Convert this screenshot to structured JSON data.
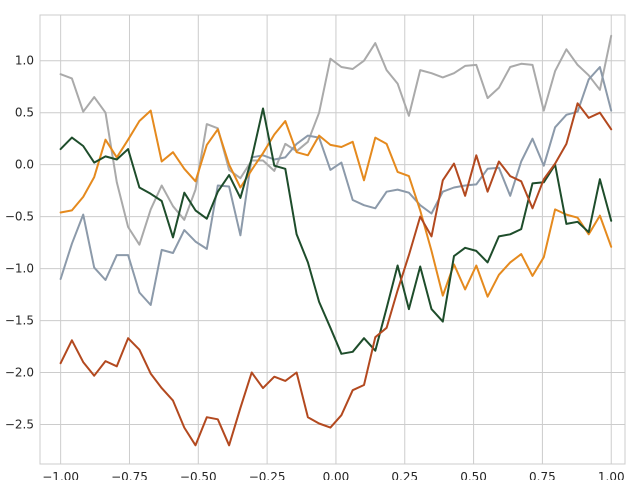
{
  "chart_data": {
    "type": "line",
    "title": "",
    "xlabel": "",
    "ylabel": "",
    "xlim": [
      -1.075,
      1.05
    ],
    "ylim": [
      -2.88,
      1.44
    ],
    "xticks": [
      -1.0,
      -0.75,
      -0.5,
      -0.25,
      0.0,
      0.25,
      0.5,
      0.75,
      1.0
    ],
    "xtick_labels": [
      "−1.00",
      "−0.75",
      "−0.50",
      "−0.25",
      "0.00",
      "0.25",
      "0.50",
      "0.75",
      "1.00"
    ],
    "yticks": [
      1.0,
      0.5,
      0.0,
      -0.5,
      -1.0,
      -1.5,
      -2.0,
      -2.5
    ],
    "ytick_labels": [
      "1.0",
      "0.5",
      "0.0",
      "−0.5",
      "−1.0",
      "−1.5",
      "−2.0",
      "−2.5"
    ],
    "grid": true,
    "legend": "none",
    "x": [
      -1.0,
      -0.959,
      -0.918,
      -0.878,
      -0.837,
      -0.796,
      -0.755,
      -0.714,
      -0.673,
      -0.633,
      -0.592,
      -0.551,
      -0.51,
      -0.469,
      -0.429,
      -0.388,
      -0.347,
      -0.306,
      -0.265,
      -0.224,
      -0.184,
      -0.143,
      -0.102,
      -0.061,
      -0.02,
      0.02,
      0.061,
      0.102,
      0.143,
      0.184,
      0.224,
      0.265,
      0.306,
      0.347,
      0.388,
      0.429,
      0.469,
      0.51,
      0.551,
      0.592,
      0.633,
      0.673,
      0.714,
      0.755,
      0.796,
      0.837,
      0.878,
      0.918,
      0.959,
      1.0
    ],
    "series": [
      {
        "color": "#aaaaaa",
        "values": [
          0.87,
          0.83,
          0.51,
          0.65,
          0.5,
          -0.17,
          -0.6,
          -0.77,
          -0.43,
          -0.2,
          -0.4,
          -0.53,
          -0.24,
          0.39,
          0.35,
          -0.05,
          -0.13,
          0.04,
          0.04,
          -0.06,
          0.2,
          0.13,
          0.22,
          0.5,
          1.02,
          0.94,
          0.92,
          1.0,
          1.17,
          0.91,
          0.78,
          0.47,
          0.91,
          0.88,
          0.84,
          0.88,
          0.95,
          0.96,
          0.64,
          0.74,
          0.94,
          0.97,
          0.96,
          0.52,
          0.9,
          1.11,
          0.96,
          0.86,
          0.72,
          1.24
        ]
      },
      {
        "color": "#8c9aaa",
        "values": [
          -1.1,
          -0.76,
          -0.48,
          -0.99,
          -1.11,
          -0.87,
          -0.87,
          -1.23,
          -1.35,
          -0.82,
          -0.85,
          -0.63,
          -0.74,
          -0.81,
          -0.2,
          -0.21,
          -0.68,
          0.07,
          0.09,
          0.05,
          0.07,
          0.2,
          0.28,
          0.26,
          -0.05,
          0.02,
          -0.34,
          -0.39,
          -0.42,
          -0.26,
          -0.24,
          -0.27,
          -0.39,
          -0.47,
          -0.26,
          -0.22,
          -0.2,
          -0.19,
          -0.04,
          -0.03,
          -0.3,
          0.03,
          0.25,
          -0.01,
          0.36,
          0.48,
          0.51,
          0.82,
          0.94,
          0.52
        ]
      },
      {
        "color": "#e58a1e",
        "values": [
          -0.46,
          -0.44,
          -0.31,
          -0.12,
          0.24,
          0.07,
          0.24,
          0.42,
          0.52,
          0.03,
          0.12,
          -0.04,
          -0.16,
          0.19,
          0.34,
          0.0,
          -0.22,
          -0.05,
          0.11,
          0.29,
          0.42,
          0.12,
          0.09,
          0.28,
          0.19,
          0.17,
          0.22,
          -0.15,
          0.26,
          0.2,
          -0.07,
          -0.11,
          -0.44,
          -0.83,
          -1.26,
          -0.96,
          -1.2,
          -0.97,
          -1.27,
          -1.06,
          -0.94,
          -0.86,
          -1.07,
          -0.89,
          -0.43,
          -0.48,
          -0.51,
          -0.67,
          -0.49,
          -0.79
        ]
      },
      {
        "color": "#1e4d2b",
        "values": [
          0.15,
          0.26,
          0.18,
          0.02,
          0.08,
          0.05,
          0.15,
          -0.22,
          -0.28,
          -0.35,
          -0.7,
          -0.27,
          -0.44,
          -0.52,
          -0.26,
          -0.1,
          -0.32,
          0.06,
          0.54,
          -0.01,
          -0.04,
          -0.67,
          -0.94,
          -1.32,
          -1.57,
          -1.82,
          -1.8,
          -1.67,
          -1.79,
          -1.38,
          -0.97,
          -1.39,
          -0.98,
          -1.39,
          -1.51,
          -0.88,
          -0.8,
          -0.83,
          -0.94,
          -0.69,
          -0.67,
          -0.62,
          -0.18,
          -0.17,
          0.0,
          -0.57,
          -0.55,
          -0.65,
          -0.14,
          -0.54
        ]
      },
      {
        "color": "#b3491f",
        "values": [
          -1.91,
          -1.69,
          -1.9,
          -2.03,
          -1.89,
          -1.94,
          -1.67,
          -1.78,
          -2.01,
          -2.15,
          -2.27,
          -2.53,
          -2.7,
          -2.43,
          -2.45,
          -2.7,
          -2.34,
          -2.0,
          -2.15,
          -2.04,
          -2.08,
          -2.0,
          -2.43,
          -2.49,
          -2.53,
          -2.41,
          -2.17,
          -2.12,
          -1.66,
          -1.57,
          -1.21,
          -0.87,
          -0.5,
          -0.69,
          -0.15,
          0.01,
          -0.3,
          0.09,
          -0.26,
          0.03,
          -0.11,
          -0.16,
          -0.42,
          -0.14,
          0.01,
          0.2,
          0.59,
          0.45,
          0.5,
          0.34
        ]
      }
    ]
  }
}
